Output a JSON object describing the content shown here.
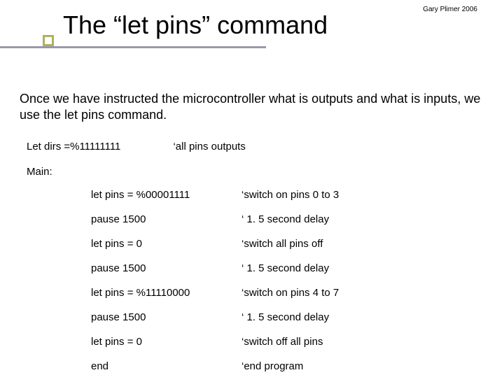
{
  "header": {
    "title": "The “let pins” command",
    "attribution": "Gary Plimer 2006"
  },
  "intro": "Once we have instructed the microcontroller what is outputs and what is inputs, we use the let pins command.",
  "dirs": {
    "code": "Let dirs =%11111111",
    "comment": "‘all pins outputs"
  },
  "main_label": "Main:",
  "lines": [
    {
      "code": "let pins = %00001111",
      "comment": "‘switch on pins 0 to 3"
    },
    {
      "code": "pause 1500",
      "comment": "‘ 1. 5 second delay"
    },
    {
      "code": "let pins = 0",
      "comment": "‘switch all pins off"
    },
    {
      "code": "pause 1500",
      "comment": "‘ 1. 5 second delay"
    },
    {
      "code": "let pins = %11110000",
      "comment": "‘switch on pins 4 to 7"
    },
    {
      "code": "pause 1500",
      "comment": "‘ 1. 5 second delay"
    },
    {
      "code": "let pins = 0",
      "comment": "‘switch off all pins"
    },
    {
      "code": "end",
      "comment": "‘end program"
    }
  ],
  "colors": {
    "background": "#ffffff",
    "text": "#000000",
    "underline": "#9999aa",
    "square_border": "#b0b060"
  }
}
